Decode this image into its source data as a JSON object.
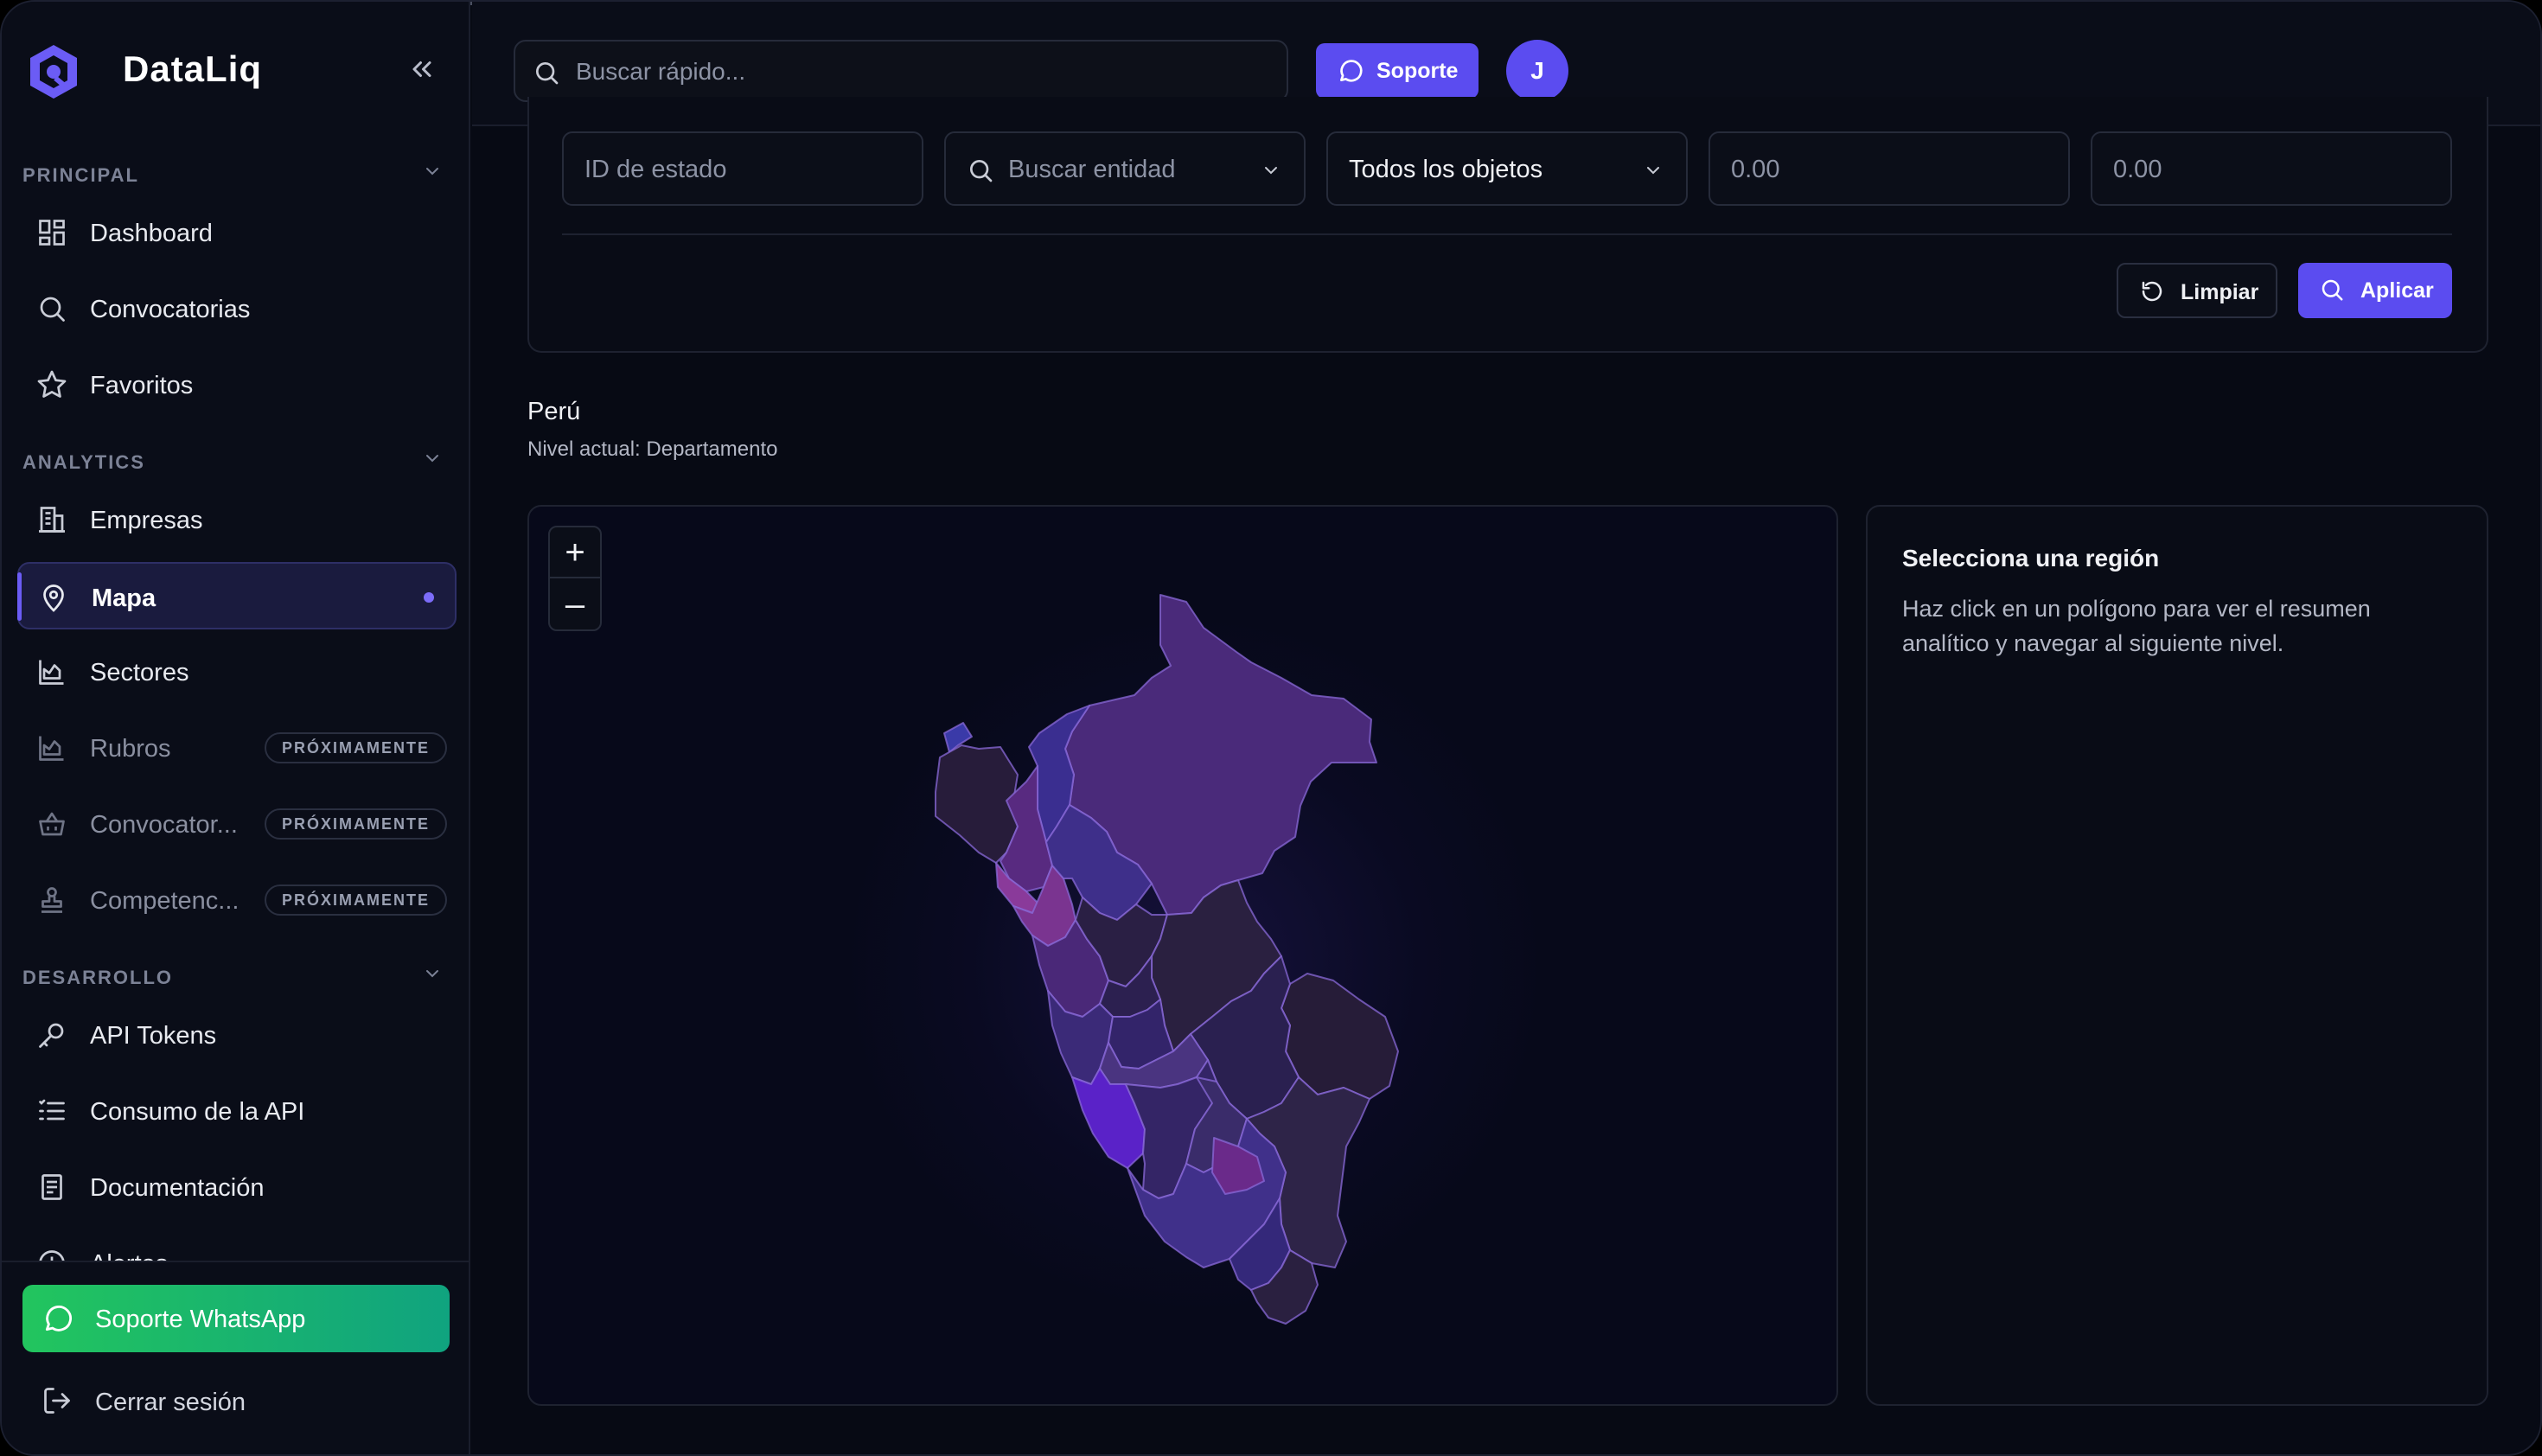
{
  "brand": {
    "name": "DataLiq"
  },
  "sidebar": {
    "sections": [
      {
        "label": "PRINCIPAL"
      },
      {
        "label": "ANALYTICS"
      },
      {
        "label": "DESARROLLO"
      }
    ],
    "items": [
      {
        "label": "Dashboard",
        "icon": "dashboard-icon"
      },
      {
        "label": "Convocatorias",
        "icon": "search-icon"
      },
      {
        "label": "Favoritos",
        "icon": "star-icon"
      },
      {
        "label": "Empresas",
        "icon": "building-icon"
      },
      {
        "label": "Mapa",
        "icon": "map-pin-icon",
        "active": true
      },
      {
        "label": "Sectores",
        "icon": "chart-icon"
      },
      {
        "label": "Rubros",
        "icon": "chart-icon",
        "badge": "PRÓXIMAMENTE"
      },
      {
        "label": "Convocator...",
        "icon": "basket-icon",
        "badge": "PRÓXIMAMENTE"
      },
      {
        "label": "Competenc...",
        "icon": "stamp-icon",
        "badge": "PRÓXIMAMENTE"
      },
      {
        "label": "API Tokens",
        "icon": "key-icon"
      },
      {
        "label": "Consumo de la API",
        "icon": "list-icon"
      },
      {
        "label": "Documentación",
        "icon": "document-icon"
      },
      {
        "label": "Alertas",
        "icon": "alert-icon"
      }
    ],
    "whatsapp_label": "Soporte WhatsApp",
    "logout_label": "Cerrar sesión"
  },
  "header": {
    "search_placeholder": "Buscar rápido...",
    "support_label": "Soporte",
    "avatar_initial": "J"
  },
  "filters": {
    "state_id_placeholder": "ID de estado",
    "entity_placeholder": "Buscar entidad",
    "objects_value": "Todos los objetos",
    "min_value": "0.00",
    "max_value": "0.00",
    "clear_label": "Limpiar",
    "apply_label": "Aplicar"
  },
  "map": {
    "title": "Perú",
    "subtitle": "Nivel actual: Departamento",
    "zoom_in": "+",
    "zoom_out": "–"
  },
  "info": {
    "title": "Selecciona una región",
    "text": "Haz click en un polígono para ver el resumen analítico y navegar al siguiente nivel."
  },
  "colors": {
    "accent": "#5b4cf0",
    "whatsapp": "#22c55e",
    "background": "#070a14"
  }
}
